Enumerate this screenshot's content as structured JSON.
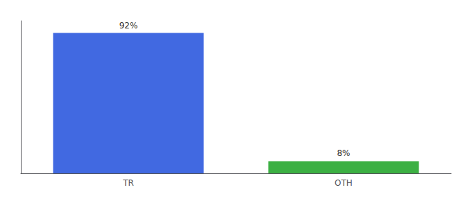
{
  "chart_data": {
    "type": "bar",
    "categories": [
      "TR",
      "OTH"
    ],
    "values": [
      92,
      8
    ],
    "colors": [
      "#4169e1",
      "#3cb043"
    ],
    "value_labels": [
      "92%",
      "8%"
    ],
    "data_labels": true,
    "ylim": [
      0,
      100
    ],
    "grid": false,
    "tick_labels": "x"
  }
}
